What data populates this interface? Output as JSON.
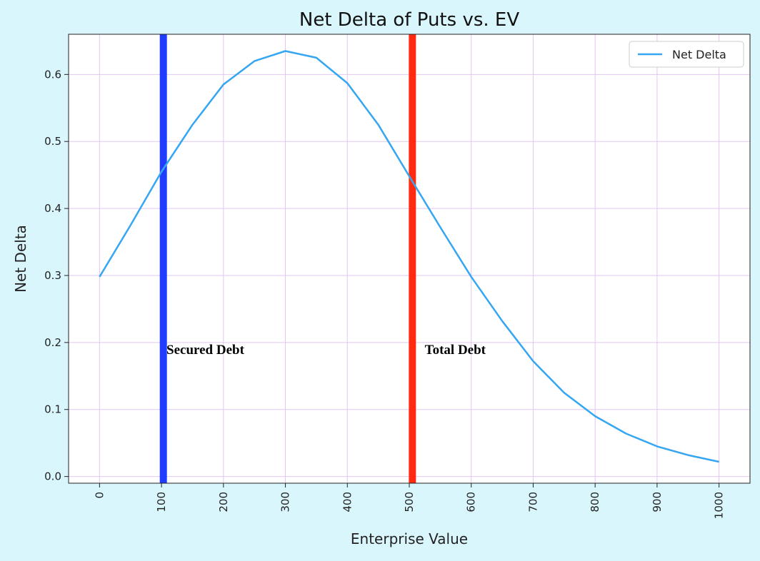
{
  "chart_data": {
    "type": "line",
    "title": "Net Delta of Puts vs. EV",
    "xlabel": "Enterprise Value",
    "ylabel": "Net Delta",
    "xlim": [
      -50,
      1050
    ],
    "ylim": [
      -0.01,
      0.66
    ],
    "xticks": [
      0,
      100,
      200,
      300,
      400,
      500,
      600,
      700,
      800,
      900,
      1000
    ],
    "yticks": [
      0.0,
      0.1,
      0.2,
      0.3,
      0.4,
      0.5,
      0.6
    ],
    "ytick_labels": [
      "0.0",
      "0.1",
      "0.2",
      "0.3",
      "0.4",
      "0.5",
      "0.6"
    ],
    "grid": true,
    "legend_position": "top-right",
    "series": [
      {
        "name": "Net Delta",
        "color": "#35a6f2",
        "x": [
          0,
          50,
          100,
          150,
          200,
          250,
          300,
          350,
          400,
          450,
          500,
          550,
          600,
          650,
          700,
          750,
          800,
          850,
          900,
          950,
          1000
        ],
        "y": [
          0.298,
          0.375,
          0.455,
          0.525,
          0.585,
          0.62,
          0.635,
          0.625,
          0.587,
          0.525,
          0.448,
          0.372,
          0.298,
          0.232,
          0.172,
          0.125,
          0.09,
          0.064,
          0.045,
          0.032,
          0.022
        ]
      }
    ],
    "vlines": [
      {
        "x": 103,
        "color": "#1f3cff",
        "label": "Secured Debt"
      },
      {
        "x": 505,
        "color": "#ff2a0f",
        "label": "Total Debt"
      }
    ],
    "annotations": [
      {
        "text": "Secured Debt",
        "x": 108,
        "y": 0.183
      },
      {
        "text": "Total Debt",
        "x": 525,
        "y": 0.183
      }
    ],
    "colors": {
      "grid": "#e2c6f0",
      "background": "#d9f6fc",
      "plot_background": "#ffffff"
    }
  }
}
